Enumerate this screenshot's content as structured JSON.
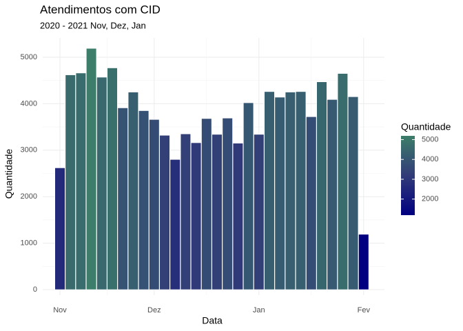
{
  "chart_data": {
    "type": "bar",
    "title": "Atendimentos com CID",
    "subtitle": "2020 - 2021 Nov, Dez, Jan",
    "x_label": "Data",
    "y_label": "Quantidade",
    "categories": [
      "Nov",
      null,
      null,
      null,
      null,
      null,
      null,
      null,
      null,
      "Dez",
      null,
      null,
      null,
      null,
      null,
      null,
      null,
      null,
      null,
      "Jan",
      null,
      null,
      null,
      null,
      null,
      null,
      null,
      null,
      null,
      "Fev"
    ],
    "values": [
      2620,
      4620,
      4660,
      5190,
      4570,
      4770,
      3910,
      4250,
      3850,
      3660,
      3320,
      2800,
      3350,
      3160,
      3680,
      3340,
      3690,
      3150,
      4020,
      3340,
      4260,
      4140,
      4250,
      4260,
      3720,
      4470,
      4090,
      4650,
      4150,
      1190
    ],
    "ylim": [
      0,
      5000
    ],
    "yticks": [
      0,
      1000,
      2000,
      3000,
      4000,
      5000
    ],
    "grid": true,
    "legend": {
      "title": "Quantidade",
      "position": "right",
      "ticks": [
        2000,
        3000,
        4000,
        5000
      ]
    },
    "colorscale": [
      "#000080",
      "#323b78",
      "#3c7e69"
    ]
  }
}
